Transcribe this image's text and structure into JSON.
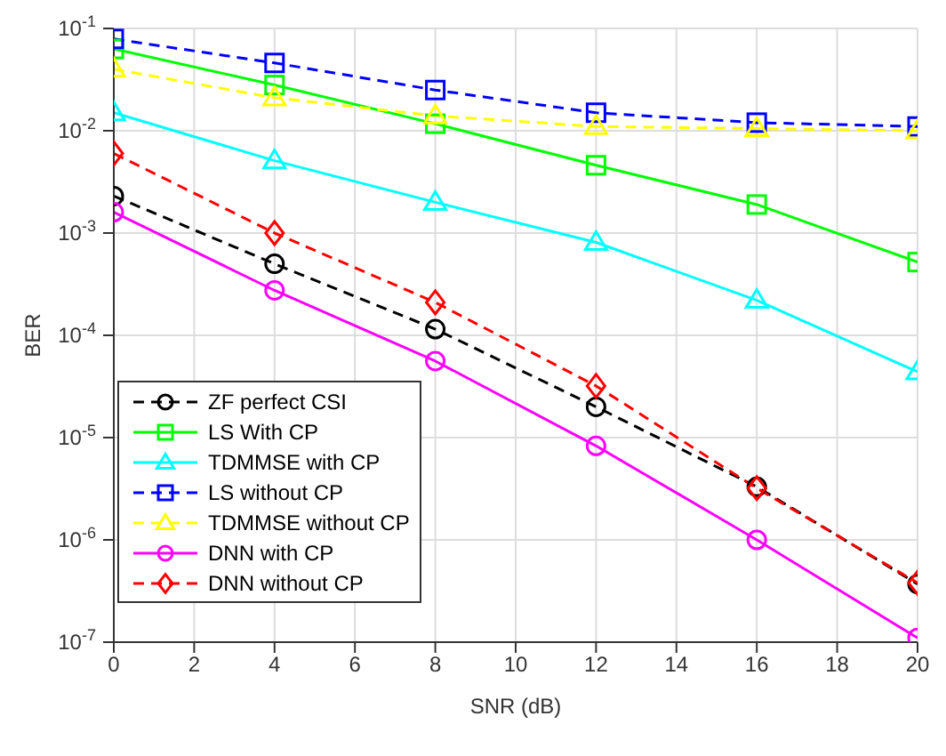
{
  "chart_data": {
    "type": "line",
    "xlabel": "SNR (dB)",
    "ylabel": "BER",
    "x": [
      0,
      4,
      8,
      12,
      16,
      20
    ],
    "xlim": [
      0,
      20
    ],
    "xticks": [
      0,
      2,
      4,
      6,
      8,
      10,
      12,
      14,
      16,
      18,
      20
    ],
    "ylim": [
      1e-07,
      0.1
    ],
    "yticks": [
      {
        "value": 1e-07,
        "label": "10$^{-7}$"
      },
      {
        "value": 1e-06,
        "label": "10$^{-6}$"
      },
      {
        "value": 1e-05,
        "label": "10$^{-5}$"
      },
      {
        "value": 0.0001,
        "label": "10$^{-4}$"
      },
      {
        "value": 0.001,
        "label": "10$^{-3}$"
      },
      {
        "value": 0.01,
        "label": "10$^{-2}$"
      },
      {
        "value": 0.1,
        "label": "10$^{-1}$"
      }
    ],
    "log": "y",
    "grid": true,
    "legend": "bottom left",
    "series": [
      {
        "name": "ZF perfect CSI",
        "color": "#000000",
        "marker": "circle",
        "line_style": "dashed",
        "values": [
          0.0023,
          0.0005,
          0.000115,
          2e-05,
          3.3e-06,
          3.7e-07
        ]
      },
      {
        "name": "LS With CP",
        "color": "#00ff00",
        "marker": "square",
        "line_style": "solid",
        "values": [
          0.063,
          0.028,
          0.0117,
          0.0046,
          0.0019,
          0.00052
        ]
      },
      {
        "name": "TDMMSE with CP",
        "color": "#00ffff",
        "marker": "triangle",
        "line_style": "solid",
        "values": [
          0.015,
          0.0051,
          0.002,
          0.00081,
          0.00022,
          4.4e-05
        ]
      },
      {
        "name": "LS without CP",
        "color": "#0000ff",
        "marker": "square",
        "line_style": "dashed",
        "values": [
          0.079,
          0.046,
          0.025,
          0.015,
          0.012,
          0.011
        ]
      },
      {
        "name": "TDMMSE without CP",
        "color": "#ffff00",
        "marker": "triangle",
        "line_style": "dashed",
        "values": [
          0.04,
          0.021,
          0.014,
          0.011,
          0.0105,
          0.01
        ]
      },
      {
        "name": "DNN with CP",
        "color": "#ff00ff",
        "marker": "circle",
        "line_style": "solid",
        "values": [
          0.0016,
          0.000275,
          5.6e-05,
          8.3e-06,
          1e-06,
          1.1e-07
        ]
      },
      {
        "name": "DNN without CP",
        "color": "#ff0000",
        "marker": "diamond",
        "line_style": "dashed",
        "values": [
          0.006,
          0.001,
          0.00021,
          3.2e-05,
          3.2e-06,
          3.8e-07
        ]
      }
    ]
  }
}
